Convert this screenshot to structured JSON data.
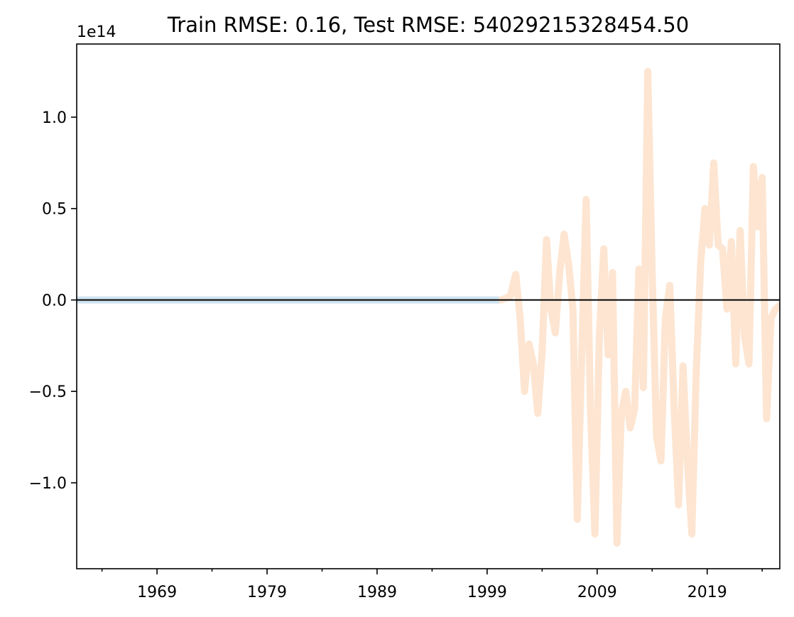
{
  "chart_data": {
    "type": "line",
    "title": "Train RMSE: 0.16, Test RMSE: 54029215328454.50",
    "xlabel": "",
    "ylabel": "",
    "y_offset_text": "1e14",
    "xlim": [
      1961.7,
      2025.6
    ],
    "ylim": [
      -147,
      140
    ],
    "x_tick_labels": [
      "1969",
      "1979",
      "1989",
      "1999",
      "2009",
      "2019"
    ],
    "x_tick_values": [
      1969,
      1979,
      1989,
      1999,
      2009,
      2019
    ],
    "x_minor_ticks": [
      1964,
      1974,
      1984,
      1994,
      2004,
      2014,
      2024
    ],
    "y_tick_labels": [
      "−1.0",
      "−0.5",
      "0.0",
      "0.5",
      "1.0"
    ],
    "y_tick_values": [
      -100,
      -50,
      0,
      50,
      100
    ],
    "y_units_note": "y values in units of 1e12 (tick labels are ×1e14)",
    "grid": false,
    "hline": {
      "y": 0,
      "color": "#000000"
    },
    "series": [
      {
        "color": "#cfe2ef",
        "x": [
          1961.7,
          2000.3
        ],
        "y": [
          0,
          0
        ]
      },
      {
        "color": "#fde5d1",
        "x": [
          2000.3,
          2001.1,
          2001.6,
          2002.0,
          2002.4,
          2002.8,
          2003.2,
          2003.6,
          2004.0,
          2004.4,
          2004.8,
          2005.2,
          2005.6,
          2006.0,
          2006.4,
          2006.8,
          2007.2,
          2007.6,
          2008.0,
          2008.4,
          2008.8,
          2009.2,
          2009.6,
          2010.0,
          2010.4,
          2010.8,
          2011.2,
          2011.6,
          2012.0,
          2012.4,
          2012.8,
          2013.2,
          2013.6,
          2014.0,
          2014.4,
          2014.8,
          2015.2,
          2015.6,
          2016.0,
          2016.4,
          2016.8,
          2017.2,
          2017.6,
          2018.0,
          2018.4,
          2018.8,
          2019.2,
          2019.6,
          2020.0,
          2020.4,
          2020.8,
          2021.2,
          2021.6,
          2022.0,
          2022.4,
          2022.8,
          2023.2,
          2023.6,
          2024.0,
          2024.4,
          2024.8,
          2025.2,
          2025.6
        ],
        "y": [
          0,
          2,
          14,
          -10,
          -50,
          -24,
          -35,
          -62,
          -28,
          33,
          -5,
          -18,
          15,
          36,
          20,
          -5,
          -120,
          -30,
          55,
          -60,
          -128,
          -20,
          28,
          -30,
          15,
          -133,
          -62,
          -50,
          -70,
          -60,
          17,
          -48,
          125,
          15,
          -75,
          -88,
          -10,
          8,
          -60,
          -112,
          -36,
          -88,
          -128,
          -40,
          20,
          50,
          30,
          75,
          30,
          28,
          -5,
          32,
          -35,
          38,
          -20,
          -35,
          73,
          40,
          67,
          -65,
          -10,
          -5,
          -3
        ]
      }
    ]
  }
}
